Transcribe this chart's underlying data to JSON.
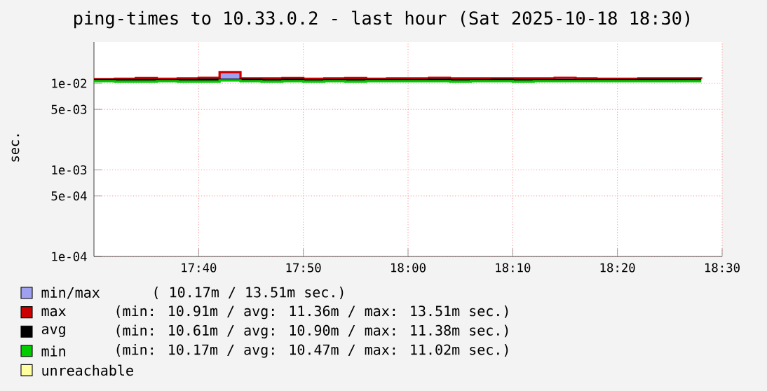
{
  "chart_data": {
    "type": "step",
    "title": "ping-times to 10.33.0.2 - last hour (Sat 2025-10-18 18:30)",
    "ylabel": "sec.",
    "log": "y",
    "grid": true,
    "legend": "bottom",
    "x": [
      17.5,
      17.5333,
      17.5667,
      17.6,
      17.6333,
      17.6667,
      17.7,
      17.7333,
      17.7667,
      17.8,
      17.8333,
      17.8667,
      17.9,
      17.9333,
      17.9667,
      18.0,
      18.0333,
      18.0667,
      18.1,
      18.1333,
      18.1667,
      18.2,
      18.2333,
      18.2667,
      18.3,
      18.3333,
      18.3667,
      18.4,
      18.4333,
      18.4667
    ],
    "xlim": [
      17.5,
      18.5
    ],
    "xticks": [
      {
        "value": 17.6667,
        "label": "17:40"
      },
      {
        "value": 17.8333,
        "label": "17:50"
      },
      {
        "value": 18.0,
        "label": "18:00"
      },
      {
        "value": 18.1667,
        "label": "18:10"
      },
      {
        "value": 18.3333,
        "label": "18:20"
      },
      {
        "value": 18.5,
        "label": "18:30"
      }
    ],
    "ylim": [
      0.0001,
      0.03
    ],
    "yticks": [
      {
        "value": 0.0001,
        "label": "1e-04"
      },
      {
        "value": 0.0005,
        "label": "5e-04"
      },
      {
        "value": 0.001,
        "label": "1e-03"
      },
      {
        "value": 0.005,
        "label": "5e-03"
      },
      {
        "value": 0.01,
        "label": "1e-02"
      }
    ],
    "series": [
      {
        "name": "min/max",
        "type": "area",
        "color": "#a0a0f0",
        "values": [
          null,
          null,
          null,
          null,
          null,
          null,
          null,
          null,
          null,
          null,
          null,
          null,
          null,
          null,
          null,
          null,
          null,
          null,
          null,
          null,
          null,
          null,
          null,
          null,
          null,
          null,
          null,
          null,
          null,
          null
        ],
        "lower": [
          0.0106,
          0.0105,
          0.0105,
          0.0106,
          0.0105,
          0.0105,
          0.0108,
          0.0106,
          0.0105,
          0.0106,
          0.0105,
          0.0106,
          0.0105,
          0.0106,
          0.0106,
          0.0106,
          0.0106,
          0.0105,
          0.0106,
          0.0106,
          0.0105,
          0.0106,
          0.0106,
          0.0106,
          0.0106,
          0.0106,
          0.0106,
          0.0106,
          0.0106,
          0.0106
        ],
        "upper": [
          0.0112,
          0.0113,
          0.0115,
          0.0113,
          0.0114,
          0.0116,
          0.0135,
          0.0114,
          0.0114,
          0.0115,
          0.0113,
          0.0114,
          0.0115,
          0.0113,
          0.0114,
          0.0114,
          0.0116,
          0.0114,
          0.0114,
          0.0114,
          0.0114,
          0.0114,
          0.0116,
          0.0114,
          0.0113,
          0.0113,
          0.0114,
          0.0114,
          0.0114,
          0.0113
        ]
      },
      {
        "name": "max",
        "color": "#cc0000",
        "values": [
          0.0112,
          0.0113,
          0.0115,
          0.0113,
          0.0114,
          0.0116,
          0.0135,
          0.0114,
          0.0114,
          0.0115,
          0.0113,
          0.0114,
          0.0115,
          0.0113,
          0.0114,
          0.0114,
          0.0116,
          0.0114,
          0.0114,
          0.0114,
          0.0114,
          0.0114,
          0.0116,
          0.0114,
          0.0113,
          0.0113,
          0.0114,
          0.0114,
          0.0114,
          0.0113
        ]
      },
      {
        "name": "avg",
        "color": "#000000",
        "values": [
          0.0109,
          0.0109,
          0.0109,
          0.0108,
          0.0109,
          0.011,
          0.011,
          0.011,
          0.0109,
          0.011,
          0.0108,
          0.0109,
          0.0109,
          0.0109,
          0.0109,
          0.0109,
          0.011,
          0.0109,
          0.0109,
          0.011,
          0.0109,
          0.0109,
          0.0109,
          0.0109,
          0.0109,
          0.0109,
          0.011,
          0.011,
          0.011,
          0.011
        ]
      },
      {
        "name": "min",
        "color": "#00cc00",
        "values": [
          0.0106,
          0.0105,
          0.0105,
          0.0106,
          0.0105,
          0.0105,
          0.0108,
          0.0106,
          0.0105,
          0.0106,
          0.0105,
          0.0106,
          0.0105,
          0.0106,
          0.0106,
          0.0106,
          0.0106,
          0.0105,
          0.0106,
          0.0106,
          0.0105,
          0.0106,
          0.0106,
          0.0106,
          0.0106,
          0.0106,
          0.0106,
          0.0106,
          0.0106,
          0.0106
        ]
      },
      {
        "name": "unreachable",
        "color": "#ffffa0",
        "values": [
          null,
          null,
          null,
          null,
          null,
          null,
          null,
          null,
          null,
          null,
          null,
          null,
          null,
          null,
          null,
          null,
          null,
          null,
          null,
          null,
          null,
          null,
          null,
          null,
          null,
          null,
          null,
          null,
          null,
          null
        ]
      }
    ],
    "annotations": [
      "( 10.17m /  13.51m sec.)",
      "(min: 10.91m / avg: 11.36m / max: 13.51m sec.)",
      "(min: 10.61m / avg: 10.90m / max: 11.38m sec.)",
      "(min: 10.17m / avg: 10.47m / max: 11.02m sec.)"
    ]
  }
}
